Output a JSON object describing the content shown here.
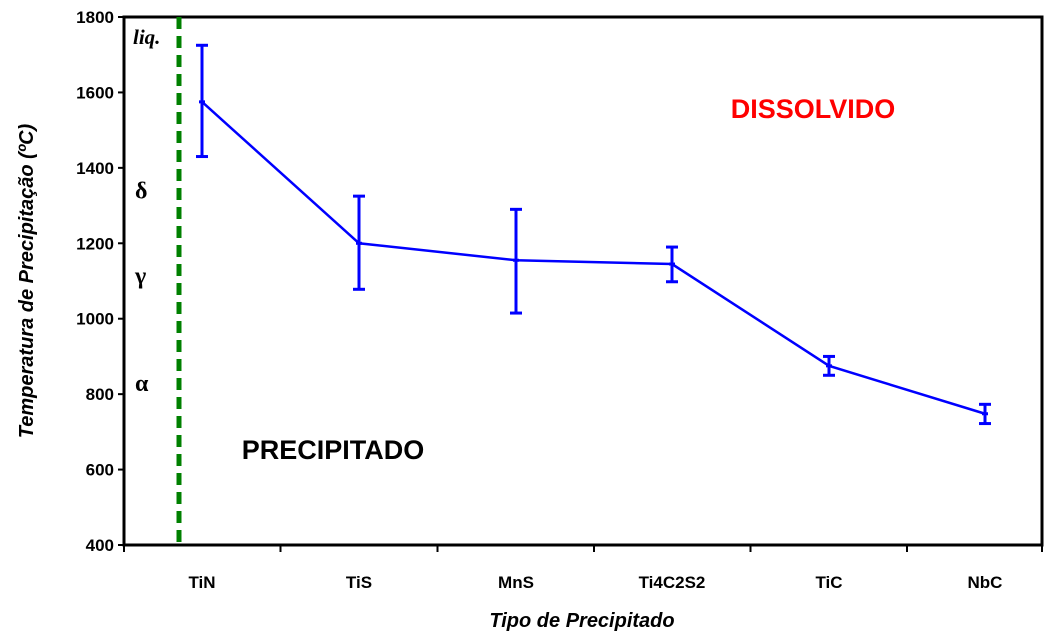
{
  "chart_data": {
    "type": "line",
    "title": "",
    "xlabel": "Tipo de Precipitado",
    "ylabel": "Temperatura de Precipitação (ºC)",
    "ylim": [
      400,
      1800
    ],
    "yticks": [
      "400",
      "600",
      "800",
      "1000",
      "1200",
      "1400",
      "1600",
      "1800"
    ],
    "categories": [
      "TiN",
      "TiS",
      "MnS",
      "Ti4C2S2",
      "TiC",
      "NbC"
    ],
    "series": [
      {
        "name": "",
        "color": "#0000ff",
        "values": [
          1575,
          1200,
          1155,
          1145,
          875,
          748
        ],
        "error_low": [
          1430,
          1078,
          1015,
          1098,
          850,
          722
        ],
        "error_high": [
          1725,
          1325,
          1290,
          1190,
          900,
          773
        ]
      }
    ],
    "phase_labels": [
      {
        "text": "liq.",
        "y": 1750
      },
      {
        "text": "δ",
        "y": 1340
      },
      {
        "text": "γ",
        "y": 1115
      },
      {
        "text": "α",
        "y": 830
      }
    ],
    "regions": {
      "dissolved": {
        "text": "DISSOLVIDO",
        "color": "#ff0000"
      },
      "precipitated": {
        "text": "PRECIPITADO",
        "color": "#000000"
      }
    },
    "boundary_line": {
      "color": "#008000",
      "style": "dashed"
    },
    "grid": false,
    "legend": "none"
  }
}
